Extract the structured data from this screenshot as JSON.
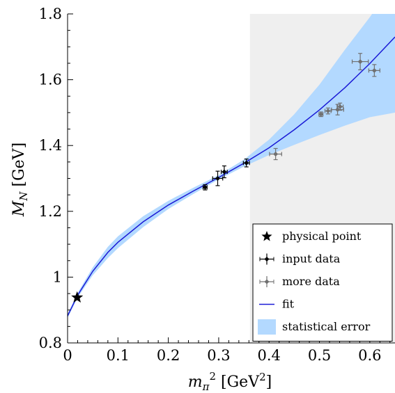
{
  "chart_data": {
    "type": "scatter",
    "xlabel": "m_π² [GeV²]",
    "xlabel_parts": {
      "base": "m",
      "sub": "π",
      "sup": "2",
      "unit_open": "[GeV",
      "unit_sup": "2",
      "unit_close": "]"
    },
    "ylabel": "M_N [GeV]",
    "ylabel_parts": {
      "base": "M",
      "sub": "N",
      "unit": "[GeV]"
    },
    "xlim": [
      0,
      0.65
    ],
    "ylim": [
      0.8,
      1.8
    ],
    "x_ticks": [
      0,
      0.1,
      0.2,
      0.3,
      0.4,
      0.5,
      0.6
    ],
    "x_tick_labels": [
      "0",
      "0.1",
      "0.2",
      "0.3",
      "0.4",
      "0.5",
      "0.6"
    ],
    "y_ticks": [
      0.8,
      1.0,
      1.2,
      1.4,
      1.6,
      1.8
    ],
    "y_tick_labels": [
      "0.8",
      "1",
      "1.2",
      "1.4",
      "1.6",
      "1.8"
    ],
    "shaded_region": {
      "x_from": 0.362,
      "x_to": 0.65,
      "color": "#efefef"
    },
    "physical_point": {
      "x": 0.019,
      "y": 0.938
    },
    "input_data": [
      {
        "x": 0.273,
        "y": 1.273,
        "xerr": 0.004,
        "yerr": 0.008
      },
      {
        "x": 0.298,
        "y": 1.3,
        "xerr": 0.01,
        "yerr": 0.022
      },
      {
        "x": 0.311,
        "y": 1.32,
        "xerr": 0.006,
        "yerr": 0.018
      },
      {
        "x": 0.355,
        "y": 1.347,
        "xerr": 0.006,
        "yerr": 0.012
      }
    ],
    "more_data": [
      {
        "x": 0.413,
        "y": 1.374,
        "xerr": 0.012,
        "yerr": 0.017
      },
      {
        "x": 0.503,
        "y": 1.495,
        "xerr": 0.004,
        "yerr": 0.007
      },
      {
        "x": 0.517,
        "y": 1.505,
        "xerr": 0.006,
        "yerr": 0.009
      },
      {
        "x": 0.536,
        "y": 1.509,
        "xerr": 0.012,
        "yerr": 0.016
      },
      {
        "x": 0.541,
        "y": 1.518,
        "xerr": 0.006,
        "yerr": 0.011
      },
      {
        "x": 0.581,
        "y": 1.655,
        "xerr": 0.016,
        "yerr": 0.025
      },
      {
        "x": 0.609,
        "y": 1.628,
        "xerr": 0.011,
        "yerr": 0.018
      }
    ],
    "fit": {
      "x": [
        0,
        0.02,
        0.05,
        0.08,
        0.1,
        0.15,
        0.2,
        0.25,
        0.3,
        0.35,
        0.4,
        0.45,
        0.5,
        0.55,
        0.6,
        0.65
      ],
      "y": [
        0.882,
        0.945,
        1.018,
        1.075,
        1.106,
        1.168,
        1.219,
        1.262,
        1.303,
        1.346,
        1.393,
        1.448,
        1.508,
        1.575,
        1.649,
        1.73
      ]
    },
    "error_band": {
      "x": [
        0,
        0.02,
        0.05,
        0.08,
        0.1,
        0.15,
        0.2,
        0.25,
        0.3,
        0.35,
        0.4,
        0.45,
        0.5,
        0.55,
        0.6,
        0.65
      ],
      "lower": [
        0.876,
        0.938,
        1.006,
        1.058,
        1.088,
        1.152,
        1.207,
        1.253,
        1.297,
        1.336,
        1.371,
        1.402,
        1.432,
        1.46,
        1.486,
        1.5
      ],
      "upper": [
        0.888,
        0.952,
        1.03,
        1.092,
        1.124,
        1.185,
        1.232,
        1.272,
        1.31,
        1.357,
        1.418,
        1.495,
        1.585,
        1.69,
        1.79,
        1.9
      ]
    },
    "legend": {
      "placement": "bottom-right",
      "items": [
        {
          "key": "physical",
          "label": "physical point"
        },
        {
          "key": "input",
          "label": "input data"
        },
        {
          "key": "more",
          "label": "more data"
        },
        {
          "key": "fit",
          "label": "fit"
        },
        {
          "key": "error",
          "label": "statistical error"
        }
      ]
    },
    "colors": {
      "input": "#000000",
      "more": "#707070",
      "fit": "#1a1ad6",
      "band": "#b3d9ff",
      "shade": "#efefef"
    }
  }
}
